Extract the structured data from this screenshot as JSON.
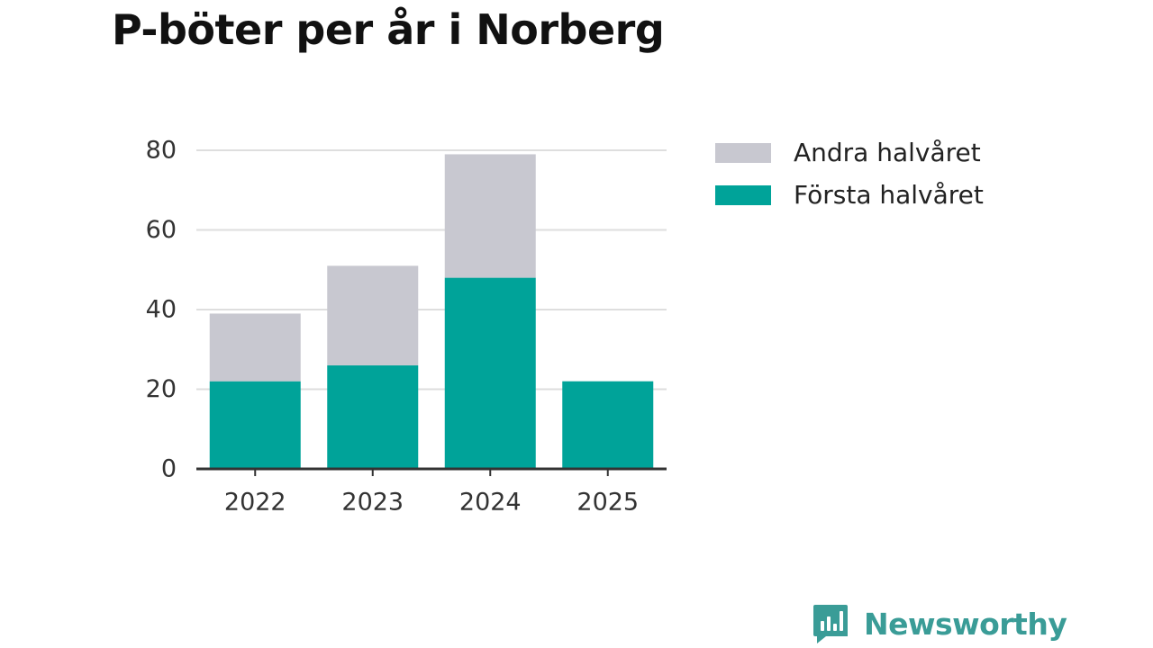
{
  "chart_data": {
    "type": "bar",
    "stacked": true,
    "title": "P-böter per år i Norberg",
    "xlabel": "",
    "ylabel": "",
    "categories": [
      "2022",
      "2023",
      "2024",
      "2025"
    ],
    "series": [
      {
        "name": "Första halvåret",
        "color": "#00a399",
        "values": [
          22,
          26,
          48,
          22
        ]
      },
      {
        "name": "Andra halvåret",
        "color": "#c8c8d0",
        "values": [
          17,
          25,
          31,
          0
        ]
      }
    ],
    "ylim": [
      0,
      80
    ],
    "yticks": [
      0,
      20,
      40,
      60,
      80
    ],
    "grid": true,
    "legend": {
      "position": "right",
      "items": [
        {
          "label": "Andra halvåret",
          "color": "#c8c8d0"
        },
        {
          "label": "Första halvåret",
          "color": "#00a399"
        }
      ]
    }
  },
  "brand": {
    "name": "Newsworthy",
    "color": "#3a9c97",
    "icon": "chart-bubble-icon"
  }
}
